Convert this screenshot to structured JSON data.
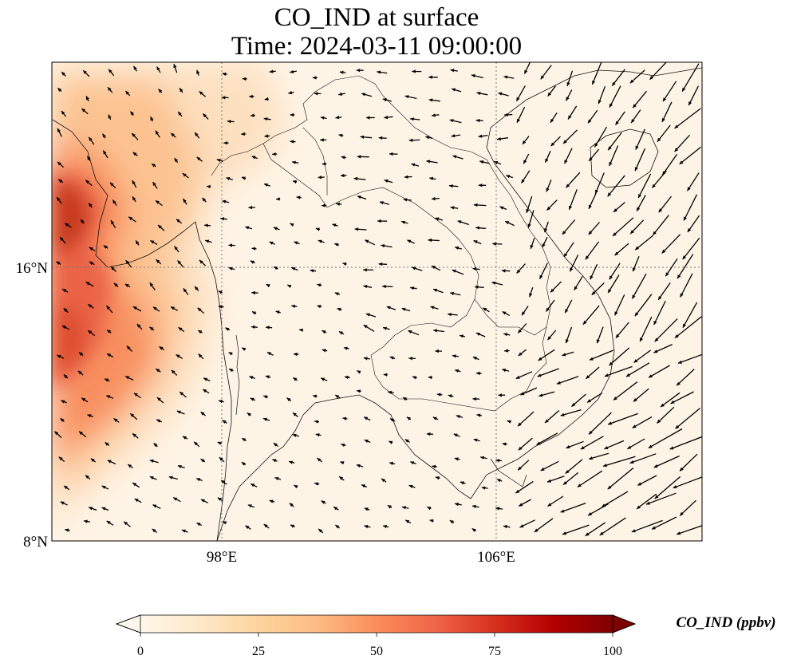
{
  "title": {
    "line1": "CO_IND at surface",
    "line2": "Time: 2024-03-11 09:00:00"
  },
  "map": {
    "variable": "CO_IND",
    "level": "surface",
    "lon_range": [
      93,
      112
    ],
    "lat_range": [
      8,
      22
    ],
    "lon_ticks": [
      {
        "value": 98,
        "label": "98°E"
      },
      {
        "value": 106,
        "label": "106°E"
      }
    ],
    "lat_ticks": [
      {
        "value": 16,
        "label": "16°N"
      },
      {
        "value": 8,
        "label": "8°N"
      }
    ],
    "gridlines": "dotted"
  },
  "colorbar": {
    "title": "CO_IND (ppbv)",
    "min": 0,
    "max": 100,
    "extend": "both",
    "colormap": "OrRd",
    "colors": [
      "#fff7ec",
      "#fee8c8",
      "#fdd49e",
      "#fdbb84",
      "#fc8d59",
      "#ef6548",
      "#d7301f",
      "#b30000",
      "#7f0000"
    ],
    "ticks": [
      {
        "value": 0,
        "label": "0"
      },
      {
        "value": 25,
        "label": "25"
      },
      {
        "value": 50,
        "label": "50"
      },
      {
        "value": 75,
        "label": "75"
      },
      {
        "value": 100,
        "label": "100"
      }
    ]
  }
}
